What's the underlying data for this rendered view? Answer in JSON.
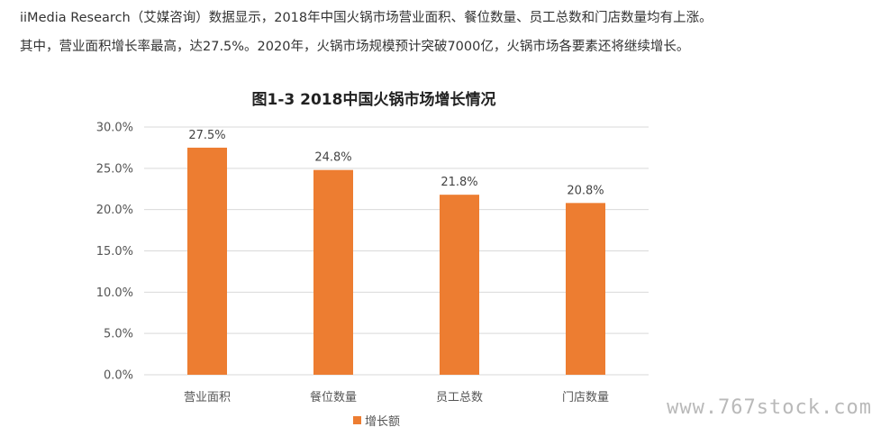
{
  "article": {
    "paragraph_1": "iiMedia Research（艾媒咨询）数据显示，2018年中国火锅市场营业面积、餐位数量、员工总数和门店数量均有上涨。",
    "paragraph_2": "其中，营业面积增长率最高，达27.5%。2020年，火锅市场规模预计突破7000亿，火锅市场各要素还将继续增长。"
  },
  "chart_data": {
    "type": "bar",
    "title": "图1-3 2018中国火锅市场增长情况",
    "categories": [
      "营业面积",
      "餐位数量",
      "员工总数",
      "门店数量"
    ],
    "series": [
      {
        "name": "增长额",
        "values": [
          27.5,
          24.8,
          21.8,
          20.8
        ]
      }
    ],
    "data_labels": [
      "27.5%",
      "24.8%",
      "21.8%",
      "20.8%"
    ],
    "y_ticks": [
      "0.0%",
      "5.0%",
      "10.0%",
      "15.0%",
      "20.0%",
      "25.0%",
      "30.0%"
    ],
    "ylim": [
      0,
      30
    ],
    "y_step": 5,
    "grid": true,
    "legend_position": "bottom",
    "bar_color": "#ed7d31",
    "grid_color": "#d9d9d9"
  },
  "watermark": "www.767stock.com"
}
